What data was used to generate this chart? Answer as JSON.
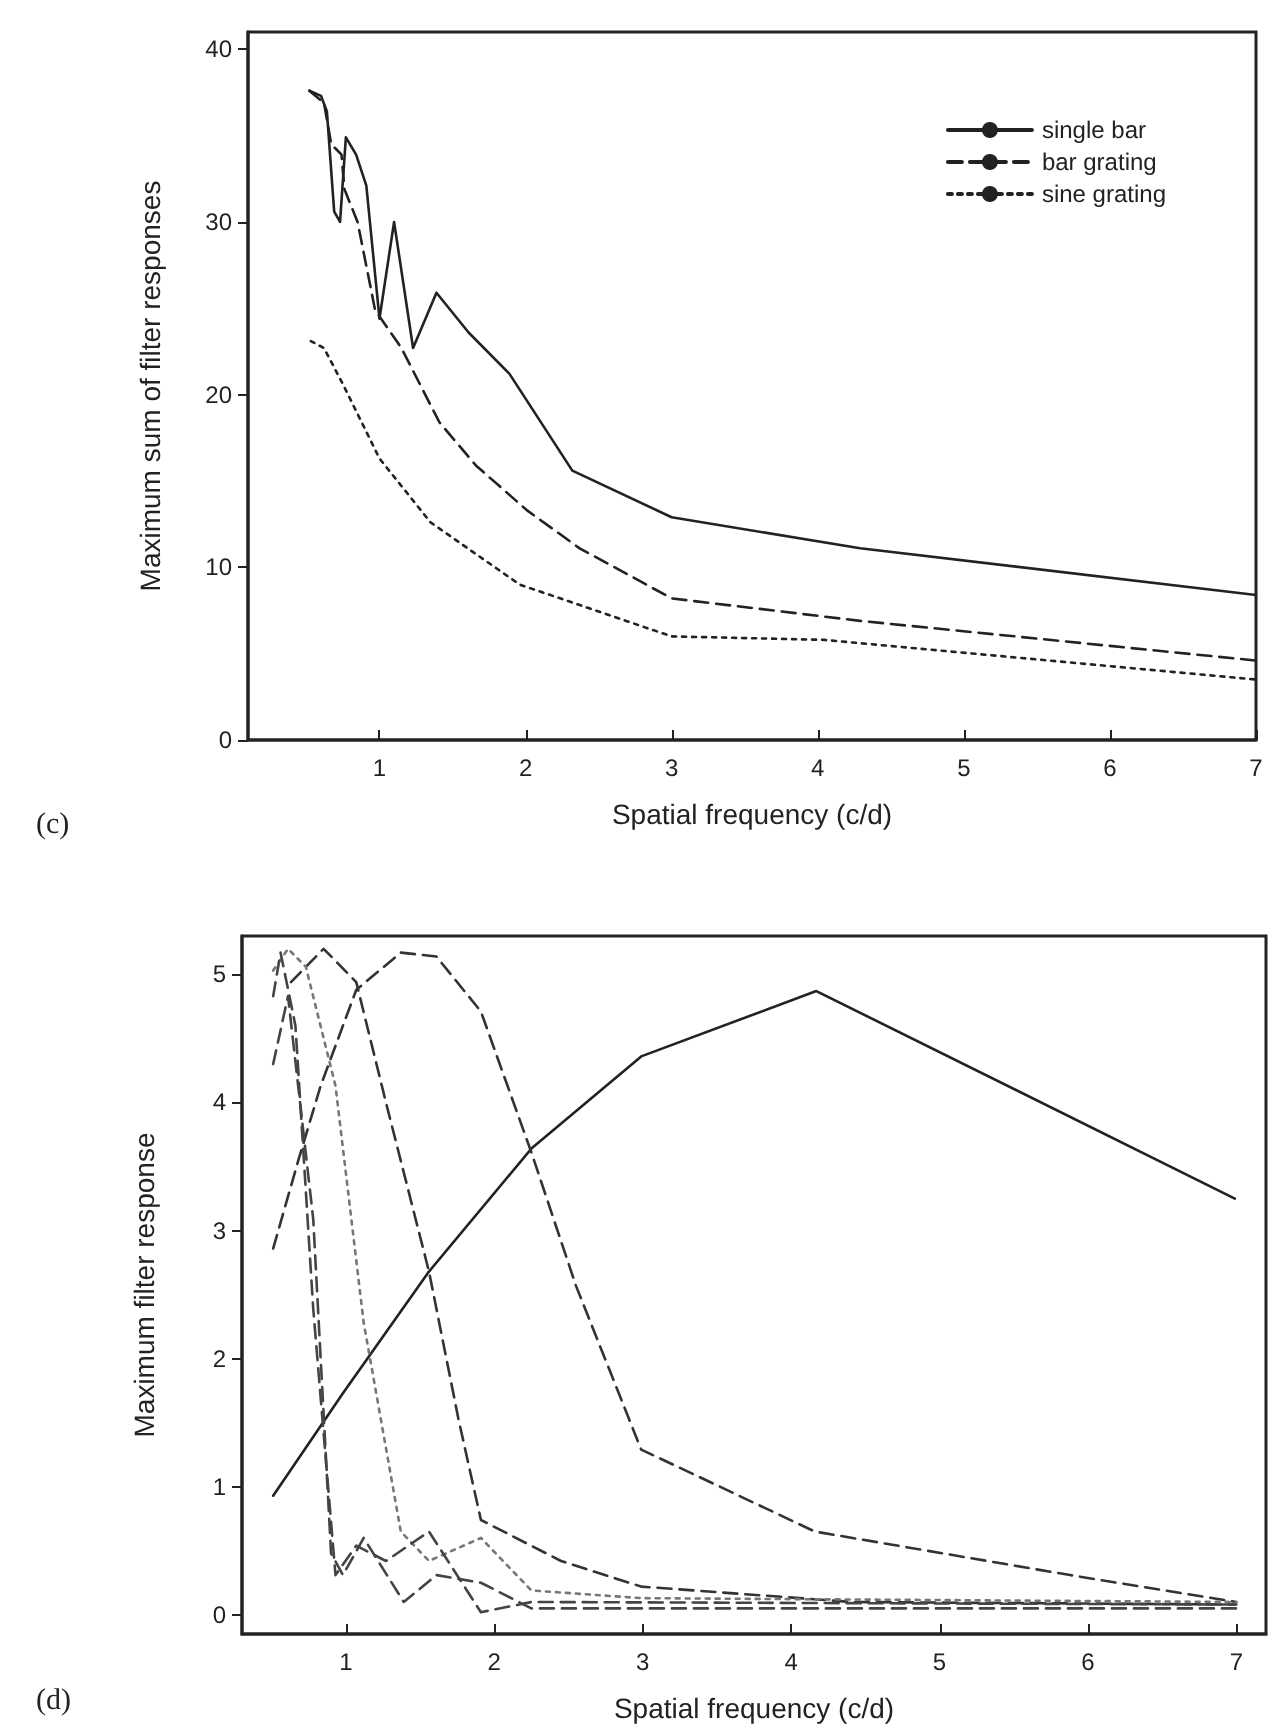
{
  "chart_data": [
    {
      "type": "line",
      "xlabel": "Spatial frequency (c/d)",
      "ylabel": "Maximum sum of filter responses",
      "annotations": [
        "(c)"
      ],
      "xlim": [
        0.1,
        7
      ],
      "xticks": [
        1,
        2,
        3,
        4,
        5,
        6,
        7
      ],
      "ylim": [
        0,
        41
      ],
      "yticks": [
        0,
        10,
        20,
        30,
        40
      ],
      "grid": false,
      "legend": "top right",
      "marker": "none",
      "series": [
        {
          "name": "single bar",
          "color": "#222222",
          "line_style": "solid",
          "x": [
            0.52,
            0.6,
            0.64,
            0.69,
            0.73,
            0.77,
            0.84,
            0.91,
            1.0,
            1.1,
            1.23,
            1.39,
            1.61,
            1.89,
            2.32,
            3.0,
            4.29,
            7
          ],
          "values": [
            37.6,
            37.3,
            36.4,
            30.6,
            30,
            34.9,
            33.9,
            32.1,
            24.4,
            30,
            22.7,
            25.9,
            23.6,
            21.2,
            15.6,
            12.9,
            11.1,
            8.4
          ]
        },
        {
          "name": "bar grating",
          "color": "#222222",
          "line_style": "dashed",
          "x": [
            0.52,
            0.62,
            0.67,
            0.74,
            0.76,
            0.85,
            0.97,
            1.15,
            1.41,
            1.66,
            2.01,
            2.37,
            3.0,
            4.29,
            7
          ],
          "values": [
            37.6,
            36.9,
            34.5,
            33.9,
            31.9,
            30,
            24.9,
            22.7,
            18.4,
            15.9,
            13.3,
            11.1,
            8.2,
            6.9,
            4.6
          ]
        },
        {
          "name": "sine grating",
          "color": "#222222",
          "line_style": "dotted",
          "x": [
            0.53,
            0.62,
            0.75,
            1.0,
            1.35,
            1.96,
            3.0,
            4.04,
            7
          ],
          "values": [
            23.1,
            22.7,
            20.6,
            16.3,
            12.6,
            9.0,
            6.0,
            5.8,
            3.5
          ]
        }
      ]
    },
    {
      "type": "line",
      "xlabel": "Spatial frequency (c/d)",
      "ylabel": "Maximum filter response",
      "annotations": [
        "(d)"
      ],
      "xlim": [
        0.3,
        7.2
      ],
      "xticks": [
        1,
        2,
        3,
        4,
        5,
        6,
        7
      ],
      "ylim": [
        -0.15,
        5.3
      ],
      "yticks": [
        0,
        1,
        2,
        3,
        4,
        5
      ],
      "grid": false,
      "legend": false,
      "marker": "none",
      "series": [
        {
          "color": "#222222",
          "line_style": "solid",
          "x": [
            0.51,
            0.98,
            1.56,
            2.25,
            2.99,
            4.17,
            6.99
          ],
          "values": [
            0.93,
            1.73,
            2.68,
            3.64,
            4.36,
            4.87,
            3.25
          ]
        },
        {
          "color": "#333333",
          "line_style": "dashed",
          "x": [
            0.51,
            0.68,
            0.83,
            1.07,
            1.37,
            1.61,
            1.91,
            2.25,
            2.55,
            2.99,
            4.16,
            5.88,
            7
          ],
          "values": [
            2.86,
            3.55,
            4.13,
            4.88,
            5.17,
            5.14,
            4.71,
            3.61,
            2.57,
            1.29,
            0.65,
            0.31,
            0.1
          ]
        },
        {
          "color": "#333333",
          "line_style": "dashed",
          "x": [
            0.63,
            0.85,
            1.07,
            1.27,
            1.56,
            1.76,
            1.91,
            2.45,
            2.99,
            4.41,
            7
          ],
          "values": [
            4.94,
            5.2,
            4.94,
            4.0,
            2.68,
            1.52,
            0.74,
            0.42,
            0.22,
            0.1,
            0.08
          ]
        },
        {
          "color": "#777777",
          "line_style": "dotted",
          "x": [
            0.51,
            0.61,
            0.73,
            0.93,
            1.12,
            1.37,
            1.56,
            1.91,
            2.25,
            2.99,
            7
          ],
          "values": [
            5.03,
            5.2,
            5.06,
            4.13,
            2.28,
            0.65,
            0.42,
            0.6,
            0.19,
            0.13,
            0.1
          ]
        },
        {
          "color": "#444444",
          "line_style": "dashed",
          "x": [
            0.51,
            0.61,
            0.78,
            0.9,
            0.98,
            1.12,
            1.39,
            1.61,
            1.91,
            2.25,
            7
          ],
          "values": [
            4.3,
            4.83,
            3.09,
            0.48,
            0.31,
            0.6,
            0.1,
            0.31,
            0.25,
            0.05,
            0.05
          ]
        },
        {
          "color": "#444444",
          "line_style": "dashed",
          "x": [
            0.51,
            0.56,
            0.66,
            0.78,
            0.93,
            1.07,
            1.27,
            1.56,
            1.91,
            2.25,
            7
          ],
          "values": [
            4.83,
            5.17,
            4.6,
            2.39,
            0.31,
            0.54,
            0.42,
            0.65,
            0.02,
            0.1,
            0.08
          ]
        }
      ]
    }
  ]
}
